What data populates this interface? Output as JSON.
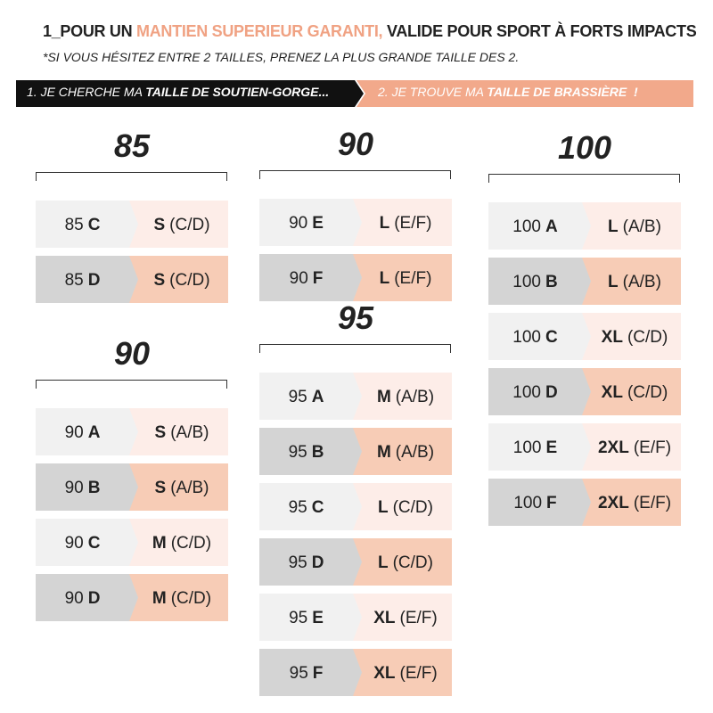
{
  "header": {
    "title": {
      "part1": "1_POUR UN ",
      "highlight": "MANTIEN SUPERIEUR GARANTI,",
      "part2": " VALIDE POUR SPORT À FORTS IMPACTS"
    },
    "note": "*SI VOUS HÉSITEZ ENTRE 2 TAILLES, PRENEZ LA PLUS GRANDE TAILLE DES 2."
  },
  "steps": [
    {
      "text": "1. JE CHERCHE MA ",
      "bold": "TAILLE DE SOUTIEN-GORGE..."
    },
    {
      "text": "2. JE TROUVE MA ",
      "bold": "TAILLE DE BRASSIÈRE  !"
    }
  ],
  "groups": [
    {
      "title": "85",
      "rows": [
        {
          "band": "85",
          "cup": "C",
          "size": "S",
          "range": "(C/D)"
        },
        {
          "band": "85",
          "cup": "D",
          "size": "S",
          "range": "(C/D)"
        }
      ]
    },
    {
      "title": "90",
      "rows": [
        {
          "band": "90",
          "cup": "A",
          "size": "S",
          "range": "(A/B)"
        },
        {
          "band": "90",
          "cup": "B",
          "size": "S",
          "range": "(A/B)"
        },
        {
          "band": "90",
          "cup": "C",
          "size": "M",
          "range": "(C/D)"
        },
        {
          "band": "90",
          "cup": "D",
          "size": "M",
          "range": "(C/D)"
        }
      ]
    },
    {
      "title": "90",
      "rows": [
        {
          "band": "90",
          "cup": "E",
          "size": "L",
          "range": "(E/F)"
        },
        {
          "band": "90",
          "cup": "F",
          "size": "L",
          "range": "(E/F)"
        }
      ]
    },
    {
      "title": "95",
      "rows": [
        {
          "band": "95",
          "cup": "A",
          "size": "M",
          "range": "(A/B)"
        },
        {
          "band": "95",
          "cup": "B",
          "size": "M",
          "range": "(A/B)"
        },
        {
          "band": "95",
          "cup": "C",
          "size": "L",
          "range": "(C/D)"
        },
        {
          "band": "95",
          "cup": "D",
          "size": "L",
          "range": "(C/D)"
        },
        {
          "band": "95",
          "cup": "E",
          "size": "XL",
          "range": "(E/F)"
        },
        {
          "band": "95",
          "cup": "F",
          "size": "XL",
          "range": "(E/F)"
        }
      ]
    },
    {
      "title": "100",
      "rows": [
        {
          "band": "100",
          "cup": "A",
          "size": "L",
          "range": "(A/B)"
        },
        {
          "band": "100",
          "cup": "B",
          "size": "L",
          "range": "(A/B)"
        },
        {
          "band": "100",
          "cup": "C",
          "size": "XL",
          "range": "(C/D)"
        },
        {
          "band": "100",
          "cup": "D",
          "size": "XL",
          "range": "(C/D)"
        },
        {
          "band": "100",
          "cup": "E",
          "size": "2XL",
          "range": "(E/F)"
        },
        {
          "band": "100",
          "cup": "F",
          "size": "2XL",
          "range": "(E/F)"
        }
      ]
    }
  ]
}
